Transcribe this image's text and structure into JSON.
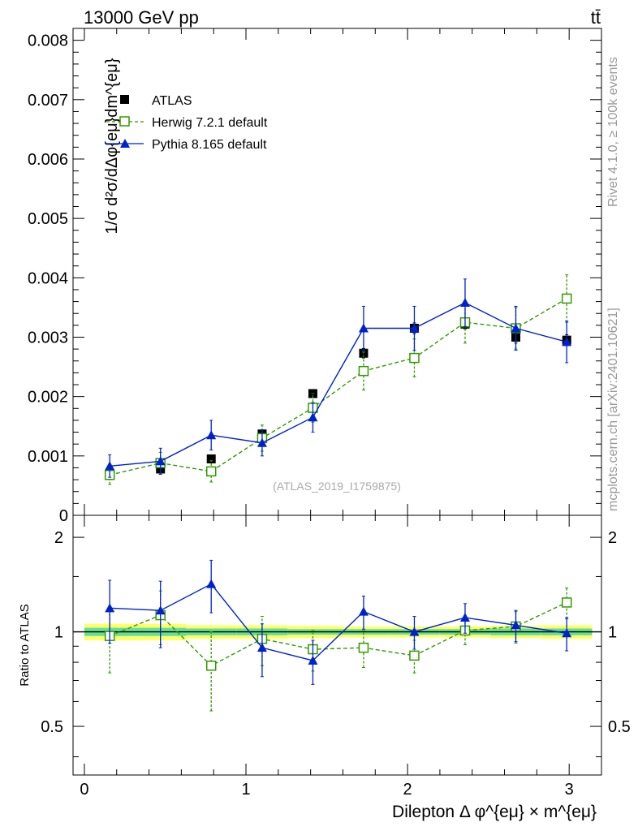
{
  "header": {
    "energy_label": "13000 GeV pp",
    "process_label": "tt̄"
  },
  "side_labels": {
    "rivet": "Rivet 4.1.0, ≥ 100k events",
    "mcplots": "mcplots.cern.ch [arXiv:2401.10621]"
  },
  "chart_data": [
    {
      "type": "scatter",
      "panel": "main",
      "ylabel": "1/σ d²σ/dΔφ{eμ}dm^{eμ}",
      "ylim": [
        0,
        0.0082
      ],
      "xlim": [
        -0.07,
        3.2
      ],
      "yticks": [
        0,
        0.001,
        0.002,
        0.003,
        0.004,
        0.005,
        0.006,
        0.007,
        0.008
      ],
      "ytick_labels": [
        "0",
        "0.001",
        "0.002",
        "0.003",
        "0.004",
        "0.005",
        "0.006",
        "0.007",
        "0.008"
      ],
      "watermark": "(ATLAS_2019_I1759875)",
      "legend": [
        "ATLAS",
        "Herwig 7.2.1 default",
        "Pythia 8.165 default"
      ],
      "legend_position": "top-left",
      "series": [
        {
          "name": "ATLAS",
          "color": "#000000",
          "marker": "square-filled",
          "x": [
            0.157,
            0.471,
            0.785,
            1.1,
            1.414,
            1.728,
            2.042,
            2.356,
            2.67,
            2.985
          ],
          "y": [
            0.0007,
            0.00078,
            0.00095,
            0.00137,
            0.00205,
            0.00273,
            0.00315,
            0.00322,
            0.003,
            0.00295
          ],
          "err": [
            4e-05,
            4e-05,
            5e-05,
            7e-05,
            6e-05,
            8e-05,
            9e-05,
            8e-05,
            0.0001,
            9e-05
          ]
        },
        {
          "name": "Herwig 7.2.1 default",
          "color": "#339900",
          "marker": "square-open",
          "line": "dashed",
          "x": [
            0.157,
            0.471,
            0.785,
            1.1,
            1.414,
            1.728,
            2.042,
            2.356,
            2.67,
            2.985
          ],
          "y": [
            0.00068,
            0.00088,
            0.00074,
            0.0013,
            0.00181,
            0.00243,
            0.00265,
            0.00325,
            0.00315,
            0.00365
          ],
          "err": [
            0.00016,
            0.00018,
            0.00018,
            0.00022,
            0.00024,
            0.00032,
            0.00032,
            0.00035,
            0.00035,
            0.0004
          ]
        },
        {
          "name": "Pythia 8.165 default",
          "color": "#0022cc",
          "marker": "triangle-filled",
          "line": "solid",
          "x": [
            0.157,
            0.471,
            0.785,
            1.1,
            1.414,
            1.728,
            2.042,
            2.356,
            2.67,
            2.985
          ],
          "y": [
            0.00083,
            0.00091,
            0.00135,
            0.00122,
            0.00165,
            0.00315,
            0.00315,
            0.00358,
            0.00315,
            0.00292
          ],
          "err": [
            0.00019,
            0.00022,
            0.00025,
            0.00022,
            0.00025,
            0.00037,
            0.00037,
            0.0004,
            0.00037,
            0.00035
          ]
        }
      ]
    },
    {
      "type": "scatter",
      "panel": "ratio",
      "ylabel": "Ratio to ATLAS",
      "xlabel": "Dilepton Δ φ^{eμ} × m^{eμ}",
      "ylim": [
        0.35,
        2.35
      ],
      "xlim": [
        -0.07,
        3.2
      ],
      "yticks": [
        0.5,
        1,
        2
      ],
      "ytick_labels": [
        "0.5",
        "1",
        "2"
      ],
      "xticks": [
        0,
        1,
        2,
        3
      ],
      "xtick_labels": [
        "0",
        "1",
        "2",
        "3"
      ],
      "band_inner": [
        0.03,
        0.03,
        0.025,
        0.025,
        0.02,
        0.02,
        0.02,
        0.02,
        0.025,
        0.025
      ],
      "band_outer": [
        0.06,
        0.06,
        0.05,
        0.05,
        0.045,
        0.04,
        0.04,
        0.04,
        0.045,
        0.05
      ],
      "band_colors": {
        "inner": "#66dd99",
        "outer": "#ffff66"
      },
      "series": [
        {
          "name": "Herwig 7.2.1 default",
          "color": "#339900",
          "marker": "square-open",
          "line": "dashed",
          "x": [
            0.157,
            0.471,
            0.785,
            1.1,
            1.414,
            1.728,
            2.042,
            2.356,
            2.67,
            2.985
          ],
          "y": [
            0.97,
            1.13,
            0.78,
            0.95,
            0.88,
            0.89,
            0.84,
            1.01,
            1.04,
            1.24
          ],
          "err": [
            0.23,
            0.22,
            0.22,
            0.17,
            0.13,
            0.12,
            0.1,
            0.1,
            0.12,
            0.14
          ]
        },
        {
          "name": "Pythia 8.165 default",
          "color": "#0022cc",
          "marker": "triangle-filled",
          "line": "solid",
          "x": [
            0.157,
            0.471,
            0.785,
            1.1,
            1.414,
            1.728,
            2.042,
            2.356,
            2.67,
            2.985
          ],
          "y": [
            1.19,
            1.17,
            1.42,
            0.89,
            0.81,
            1.16,
            1.0,
            1.11,
            1.05,
            0.99
          ],
          "err": [
            0.27,
            0.28,
            0.27,
            0.17,
            0.13,
            0.14,
            0.12,
            0.12,
            0.12,
            0.12
          ]
        }
      ]
    }
  ]
}
